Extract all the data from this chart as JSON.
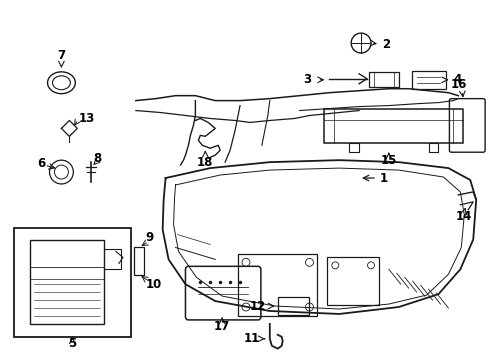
{
  "bg_color": "#ffffff",
  "line_color": "#1a1a1a",
  "text_color": "#000000",
  "fig_w": 4.9,
  "fig_h": 3.6,
  "dpi": 100
}
